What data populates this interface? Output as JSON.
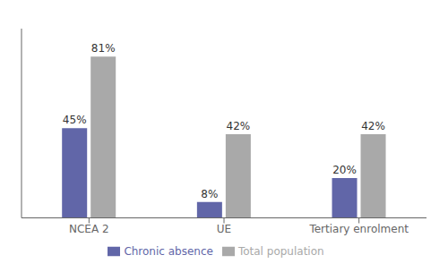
{
  "chart_data": {
    "type": "bar",
    "categories": [
      "NCEA 2",
      "UE",
      "Tertiary enrolment"
    ],
    "series": [
      {
        "name": "Chronic absence",
        "color": "#6166a8",
        "values": [
          45,
          8,
          20
        ],
        "value_labels": [
          "45%",
          "8%",
          "20%"
        ]
      },
      {
        "name": "Total population",
        "color": "#a9a9a9",
        "values": [
          81,
          42,
          42
        ],
        "value_labels": [
          "81%",
          "42%",
          "42%"
        ]
      }
    ],
    "ylim": [
      0,
      95
    ],
    "data_labels": true,
    "tick_labels": "x",
    "legend": "bottom",
    "grid": false
  }
}
